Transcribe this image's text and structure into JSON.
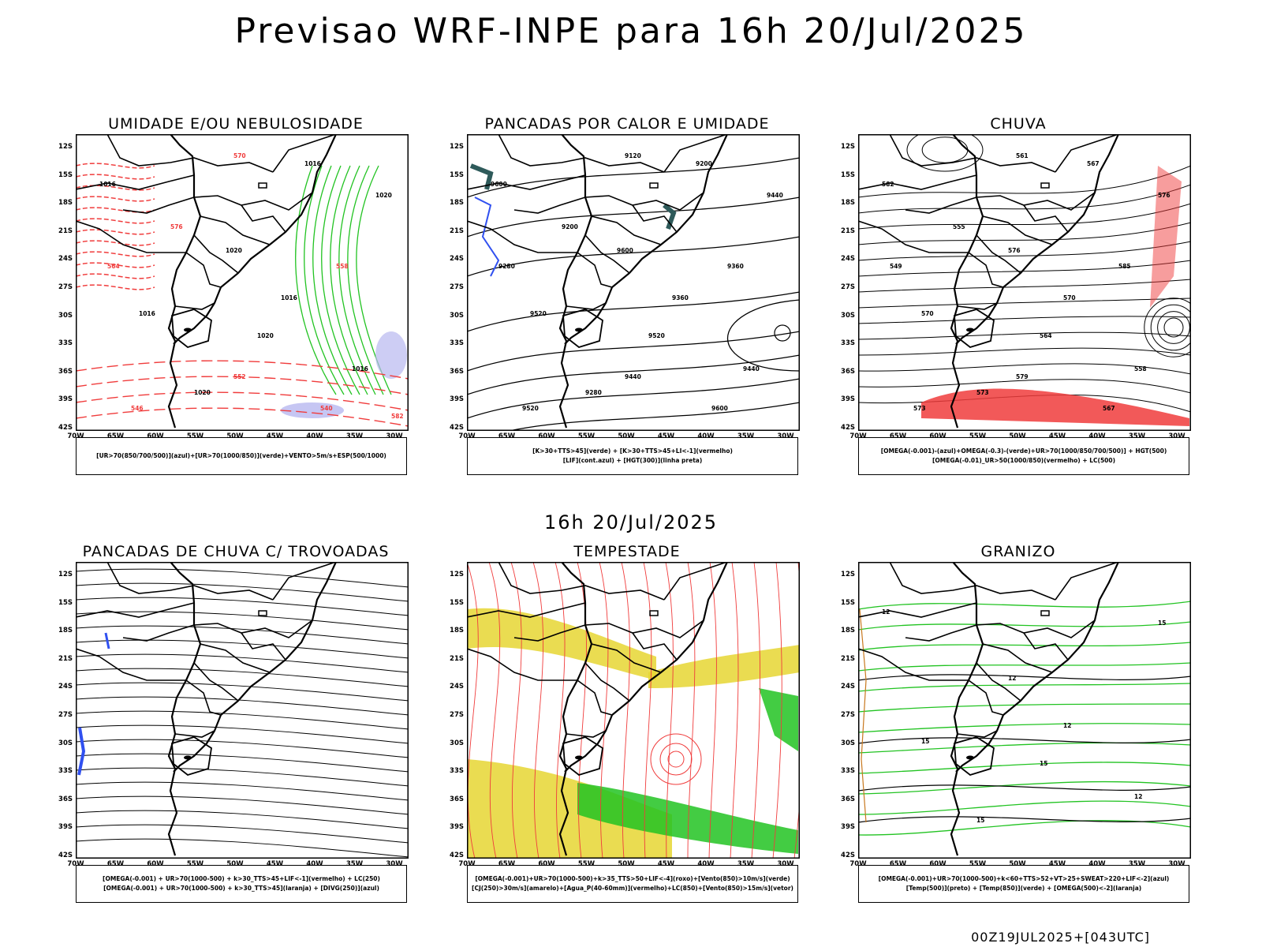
{
  "title": "Previsao WRF-INPE  para 16h 20/Jul/2025",
  "mid_date": "16h 20/Jul/2025",
  "footer": "00Z19JUL2025+[043UTC]",
  "axes": {
    "lat_labels": [
      "12S",
      "15S",
      "18S",
      "21S",
      "24S",
      "27S",
      "30S",
      "33S",
      "36S",
      "39S",
      "42S"
    ],
    "lon_labels": [
      "70W",
      "65W",
      "60W",
      "55W",
      "50W",
      "45W",
      "40W",
      "35W",
      "30W"
    ]
  },
  "colors": {
    "red": "#f03c3c",
    "green": "#22c322",
    "blue": "#3050f0",
    "yellow": "#e6d632",
    "lavender": "#b8b8f0",
    "teal": "#2e5a5a"
  },
  "panels": [
    {
      "title": "UMIDADE E/OU NEBULOSIDADE",
      "legend": [
        "[UR>70(850/700/500)](azul)+[UR>70(1000/850)](verde)+VENTO>5m/s+ESP(500/1000)"
      ],
      "contour_labels": [
        "1016",
        "1020",
        "1016",
        "1020",
        "1016",
        "1020",
        "1016",
        "1020",
        "1016",
        "570",
        "576",
        "564",
        "558",
        "552",
        "546",
        "540",
        "582"
      ]
    },
    {
      "title": "PANCADAS POR CALOR E UMIDADE",
      "legend": [
        "[K>30+TTS>45](verde) + [K>30+TTS>45+LI<-1](vermelho)",
        "[LIF](cont.azul) + [HGT(300)](linha preta)"
      ],
      "contour_labels": [
        "9600",
        "9600",
        "9520",
        "9520",
        "9440",
        "9440",
        "9360",
        "9280",
        "9200",
        "9120",
        "9200",
        "9280",
        "9360",
        "9440",
        "9520",
        "9600"
      ]
    },
    {
      "title": "CHUVA",
      "legend": [
        "[OMEGA(-0.001)-(azul)+OMEGA(-0.3)-(verde)+UR>70(1000/850/700/500)] + HGT(500)",
        "[OMEGA(-0.01)_UR>50(1000/850)(vermelho) + LC(500)"
      ],
      "contour_labels": [
        "582",
        "576",
        "570",
        "564",
        "558",
        "576",
        "570",
        "573",
        "567",
        "561",
        "555",
        "549",
        "585",
        "579",
        "573",
        "567"
      ]
    },
    {
      "title": "PANCADAS DE CHUVA C/ TROVOADAS",
      "legend": [
        "[OMEGA(-0.001) + UR>70(1000-500) + k>30_TTS>45+LIF<-1](vermelho) + LC(250)",
        "[OMEGA(-0.001) + UR>70(1000-500) + k>30_TTS>45](laranja) + [DIVG(250)](azul)"
      ],
      "contour_labels": []
    },
    {
      "title": "TEMPESTADE",
      "legend": [
        "[OMEGA(-0.001)+UR>70(1000-500)+k>35_TTS>50+LIF<-4](roxo)+[Vento(850)>10m/s](verde)",
        "[CJ(250)>30m/s](amarelo)+[Agua_P(40-60mm)](vermelho)+LC(850)+[Vento(850)>15m/s](vetor)"
      ],
      "contour_labels": []
    },
    {
      "title": "GRANIZO",
      "legend": [
        "[OMEGA(-0.001)+UR>70(1000-500)+k<60+TTS>52+VT>25+SWEAT>220+LIF<-2](azul)",
        "[Temp(500)](preto) + [Temp(850)](verde) + [OMEGA(500)<-2](laranja)"
      ],
      "contour_labels": [
        "12",
        "12",
        "15",
        "15",
        "12",
        "15",
        "12",
        "15"
      ]
    }
  ]
}
